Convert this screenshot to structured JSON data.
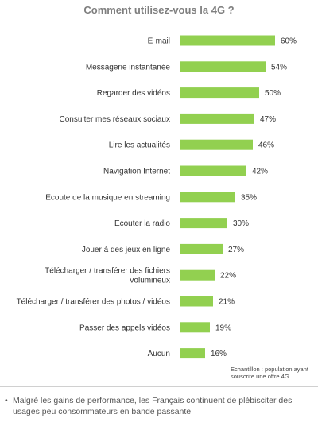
{
  "chart_data": {
    "type": "bar",
    "orientation": "horizontal",
    "title": "Comment utilisez-vous la 4G ?",
    "categories": [
      "E-mail",
      "Messagerie instantanée",
      "Regarder des vidéos",
      "Consulter mes réseaux sociaux",
      "Lire les actualités",
      "Navigation Internet",
      "Ecoute de la musique en streaming",
      "Ecouter la radio",
      "Jouer à des jeux en ligne",
      "Télécharger / transférer des fichiers volumineux",
      "Télécharger / transférer des photos / vidéos",
      "Passer des appels vidéos",
      "Aucun"
    ],
    "category_lines": [
      [
        "E-mail"
      ],
      [
        "Messagerie instantanée"
      ],
      [
        "Regarder des vidéos"
      ],
      [
        "Consulter mes réseaux sociaux"
      ],
      [
        "Lire les actualités"
      ],
      [
        "Navigation Internet"
      ],
      [
        "Ecoute de la musique en streaming"
      ],
      [
        "Ecouter la radio"
      ],
      [
        "Jouer à des jeux en ligne"
      ],
      [
        "Télécharger / transférer des fichiers",
        "volumineux"
      ],
      [
        "Télécharger / transférer des photos / vidéos"
      ],
      [
        "Passer des appels vidéos"
      ],
      [
        "Aucun"
      ]
    ],
    "values": [
      60,
      54,
      50,
      47,
      46,
      42,
      35,
      30,
      27,
      22,
      21,
      19,
      16
    ],
    "value_labels": [
      "60%",
      "54%",
      "50%",
      "47%",
      "46%",
      "42%",
      "35%",
      "30%",
      "27%",
      "22%",
      "21%",
      "19%",
      "16%"
    ],
    "xlim": [
      0,
      100
    ],
    "grid": false,
    "bar_color": "#92d050"
  },
  "note": {
    "line1": "Echantillon : population ayant",
    "line2": "souscrite une offre 4G"
  },
  "footnote": {
    "bullet": "•",
    "text": "Malgré les gains de performance, les Français continuent de plébisciter des usages peu consommateurs en bande passante"
  }
}
